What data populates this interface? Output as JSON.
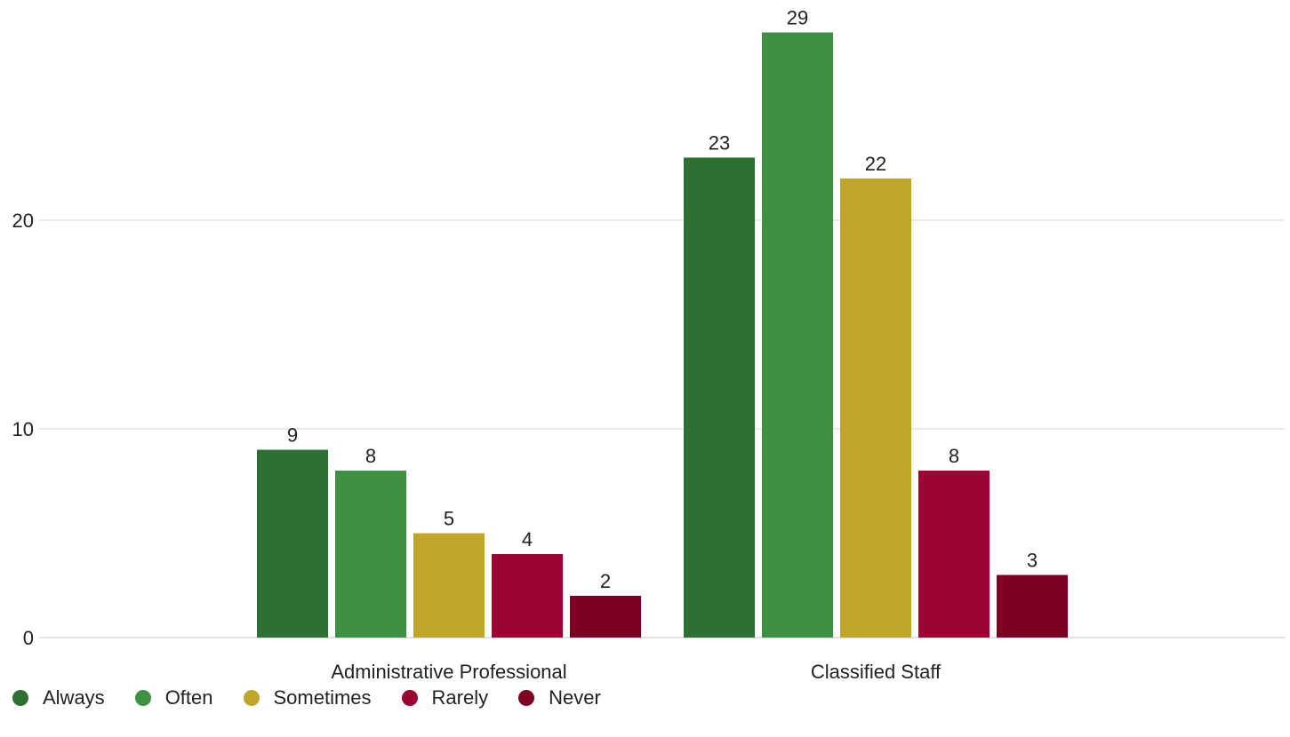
{
  "chart_data": {
    "type": "bar",
    "categories": [
      "Administrative Professional",
      "Classified Staff"
    ],
    "series": [
      {
        "name": "Always",
        "color": "#2e7031",
        "values": [
          9,
          23
        ]
      },
      {
        "name": "Often",
        "color": "#3e9140",
        "values": [
          8,
          29
        ]
      },
      {
        "name": "Sometimes",
        "color": "#c1a42a",
        "values": [
          5,
          22
        ]
      },
      {
        "name": "Rarely",
        "color": "#9c0331",
        "values": [
          4,
          8
        ]
      },
      {
        "name": "Never",
        "color": "#7d0022",
        "values": [
          2,
          3
        ]
      }
    ],
    "y_ticks": [
      0,
      10,
      20
    ],
    "ylim": [
      0,
      30
    ],
    "grid": true,
    "data_labels": true,
    "legend_position": "bottom-left"
  }
}
